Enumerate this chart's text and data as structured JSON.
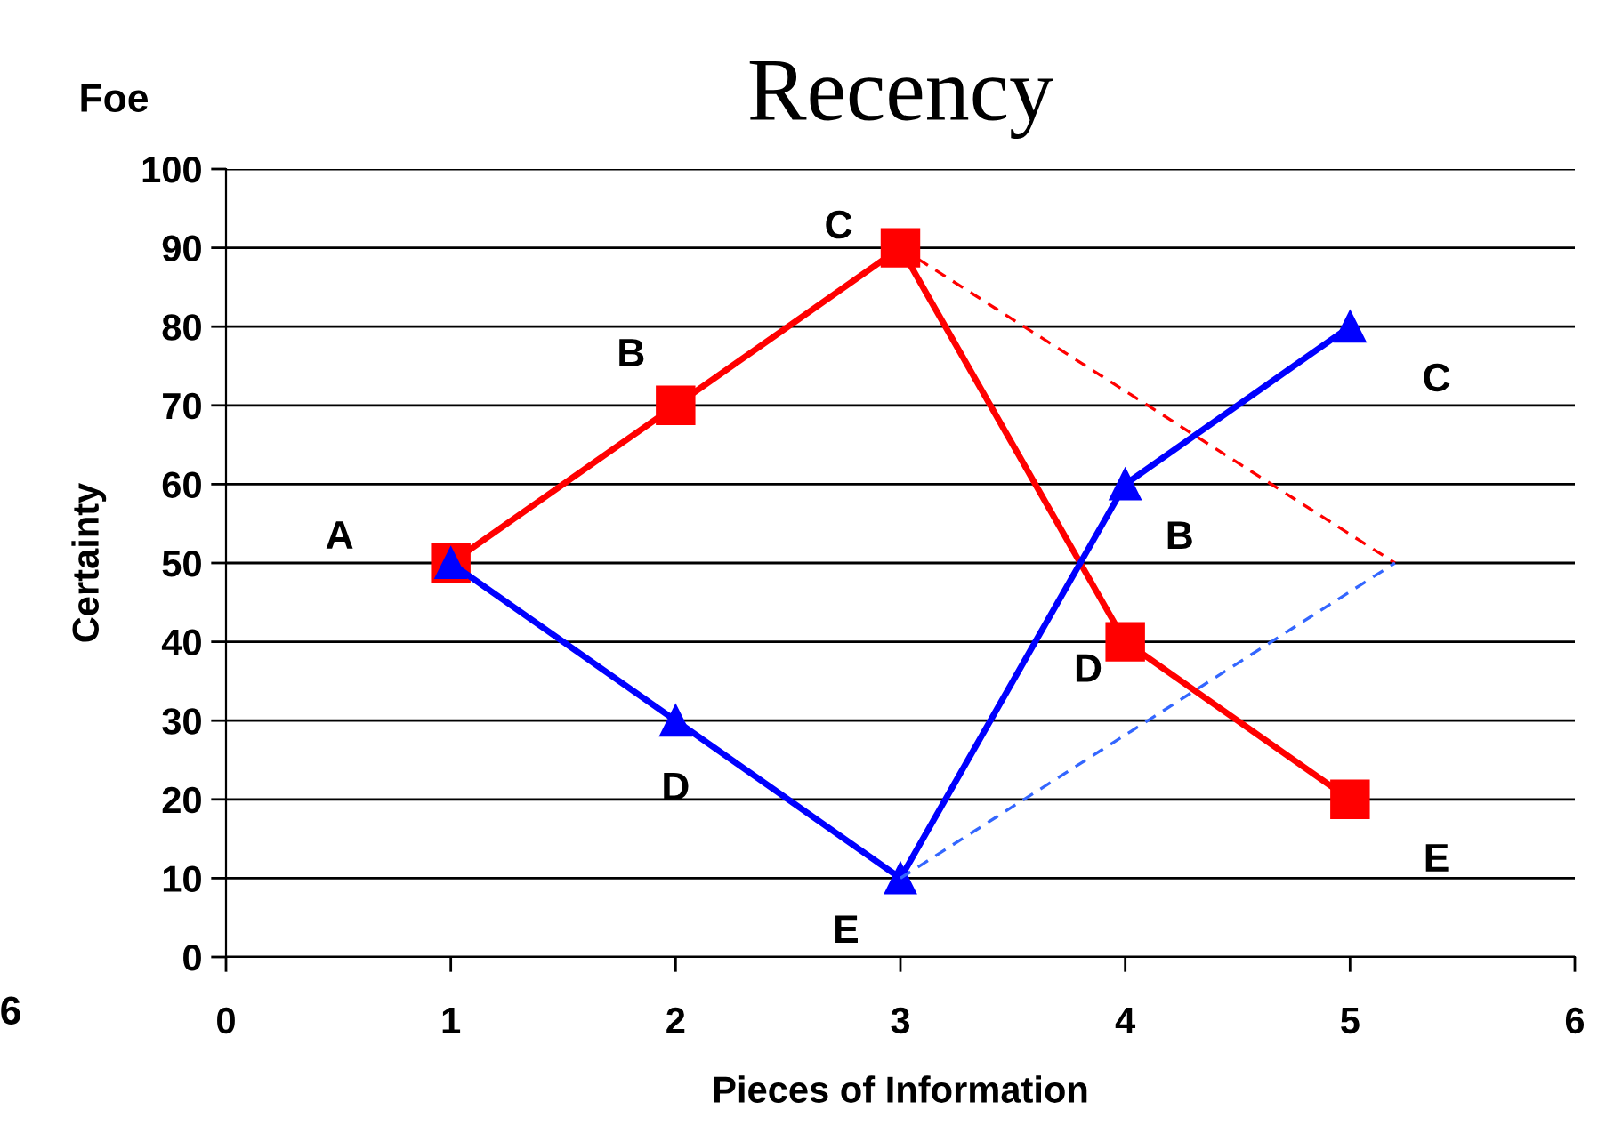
{
  "chart_data": {
    "type": "line",
    "title": "Recency",
    "xlabel": "Pieces of Information",
    "ylabel": "Certainty",
    "xlim": [
      0,
      6
    ],
    "ylim": [
      0,
      100
    ],
    "xticks": [
      0,
      1,
      2,
      3,
      4,
      5,
      6
    ],
    "yticks": [
      0,
      10,
      20,
      30,
      40,
      50,
      60,
      70,
      80,
      90,
      100
    ],
    "grid": "y",
    "legend": false,
    "series": [
      {
        "color": "#ff0000",
        "x": [
          1,
          2,
          3,
          4,
          5
        ],
        "values": [
          50,
          70,
          90,
          40,
          20
        ],
        "marker": "square",
        "line_style": "solid"
      },
      {
        "color": "#0000ff",
        "x": [
          1,
          2,
          3,
          4,
          5
        ],
        "values": [
          50,
          30,
          10,
          60,
          80
        ],
        "marker": "triangle",
        "line_style": "solid"
      },
      {
        "color": "#ff0000",
        "x": [
          3,
          5.2
        ],
        "values": [
          90,
          50
        ],
        "marker": "none",
        "line_style": "dashed"
      },
      {
        "color": "#3366ff",
        "x": [
          3,
          5.2
        ],
        "values": [
          10,
          50
        ],
        "marker": "none",
        "line_style": "dashed"
      }
    ],
    "annotations": [
      "Foe",
      "6",
      {
        "text": "A",
        "x": 1,
        "y": 50
      },
      {
        "text": "B",
        "x": 2,
        "y": 70
      },
      {
        "text": "C",
        "x": 3,
        "y": 90
      },
      {
        "text": "D",
        "x": 4,
        "y": 40
      },
      {
        "text": "E",
        "x": 5,
        "y": 20
      },
      {
        "text": "D",
        "x": 2,
        "y": 30
      },
      {
        "text": "E",
        "x": 3,
        "y": 10
      },
      {
        "text": "B",
        "x": 4,
        "y": 60
      },
      {
        "text": "C",
        "x": 5,
        "y": 80
      }
    ]
  }
}
